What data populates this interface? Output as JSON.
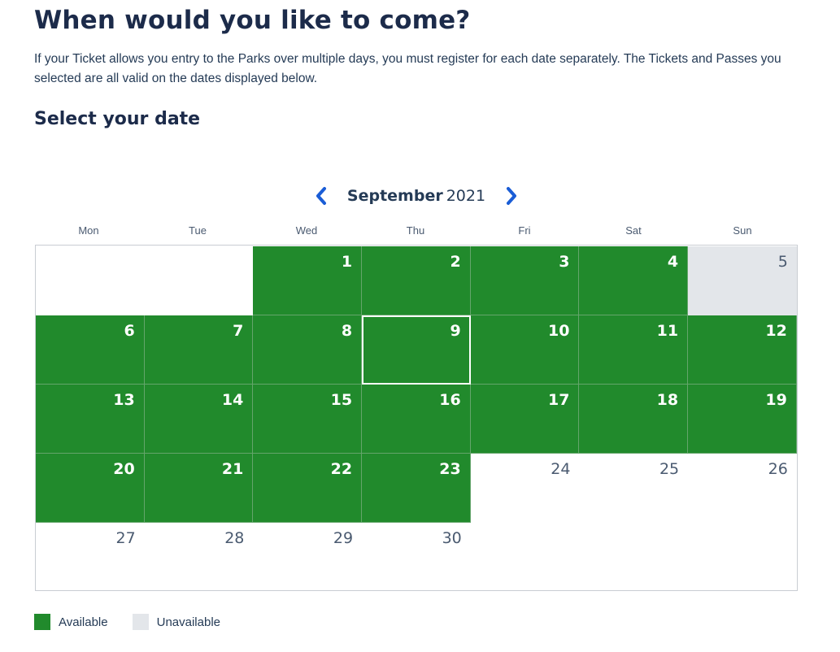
{
  "header": {
    "title": "When would you like to come?",
    "description": "If your Ticket allows you entry to the Parks over multiple days, you must register for each date separately. The Tickets and Passes you selected are all valid on the dates displayed below.",
    "subtitle": "Select your date"
  },
  "calendar": {
    "month": "September",
    "year": "2021",
    "prev_icon": "chevron-left-icon",
    "next_icon": "chevron-right-icon",
    "weekdays": [
      "Mon",
      "Tue",
      "Wed",
      "Thu",
      "Fri",
      "Sat",
      "Sun"
    ],
    "leading_blanks": 2,
    "days": [
      {
        "n": "1",
        "s": "available"
      },
      {
        "n": "2",
        "s": "available"
      },
      {
        "n": "3",
        "s": "available"
      },
      {
        "n": "4",
        "s": "available"
      },
      {
        "n": "5",
        "s": "unavailable"
      },
      {
        "n": "6",
        "s": "available"
      },
      {
        "n": "7",
        "s": "available"
      },
      {
        "n": "8",
        "s": "available"
      },
      {
        "n": "9",
        "s": "available",
        "selected": true
      },
      {
        "n": "10",
        "s": "available"
      },
      {
        "n": "11",
        "s": "available"
      },
      {
        "n": "12",
        "s": "available"
      },
      {
        "n": "13",
        "s": "available"
      },
      {
        "n": "14",
        "s": "available"
      },
      {
        "n": "15",
        "s": "available"
      },
      {
        "n": "16",
        "s": "available"
      },
      {
        "n": "17",
        "s": "available"
      },
      {
        "n": "18",
        "s": "available"
      },
      {
        "n": "19",
        "s": "available"
      },
      {
        "n": "20",
        "s": "available"
      },
      {
        "n": "21",
        "s": "available"
      },
      {
        "n": "22",
        "s": "available"
      },
      {
        "n": "23",
        "s": "available"
      },
      {
        "n": "24",
        "s": "none"
      },
      {
        "n": "25",
        "s": "none"
      },
      {
        "n": "26",
        "s": "none"
      },
      {
        "n": "27",
        "s": "none"
      },
      {
        "n": "28",
        "s": "none"
      },
      {
        "n": "29",
        "s": "none"
      },
      {
        "n": "30",
        "s": "none"
      }
    ]
  },
  "legend": {
    "available": "Available",
    "unavailable": "Unavailable"
  },
  "colors": {
    "available": "#218a2c",
    "unavailable": "#e3e6ea",
    "accent": "#1a5dd6",
    "heading": "#1c2b4a"
  }
}
